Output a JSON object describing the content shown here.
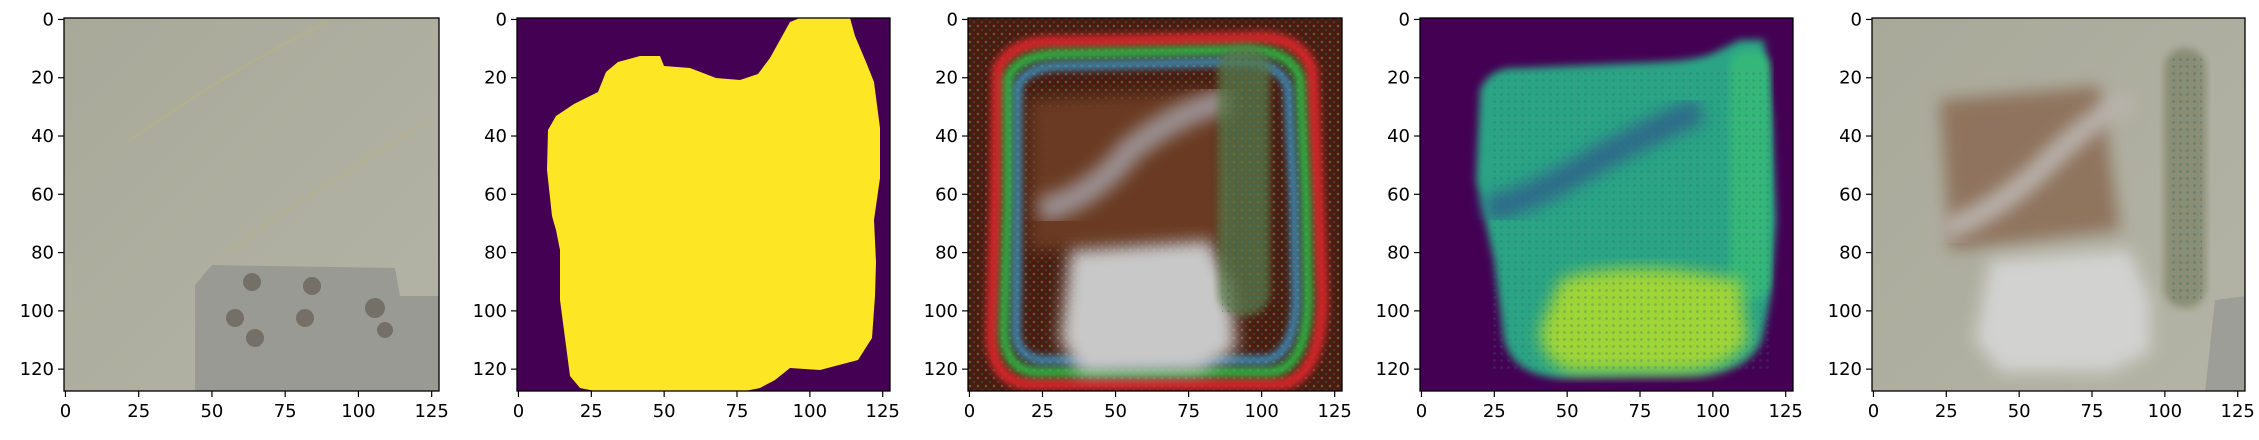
{
  "figure": {
    "panel_count": 5,
    "axis": {
      "x_ticks": [
        "0",
        "25",
        "50",
        "75",
        "100",
        "125"
      ],
      "y_ticks": [
        "0",
        "20",
        "40",
        "60",
        "80",
        "100",
        "120"
      ],
      "x_tick_values": [
        0,
        25,
        50,
        75,
        100,
        125
      ],
      "y_tick_values": [
        0,
        20,
        40,
        60,
        80,
        100,
        120
      ],
      "extent": [
        128,
        128
      ]
    },
    "panels": [
      {
        "name": "input-image",
        "kind": "rgb-photo"
      },
      {
        "name": "mask",
        "kind": "binary-mask",
        "colors": {
          "background": "#440154",
          "foreground": "#fde725"
        }
      },
      {
        "name": "generated-image",
        "kind": "rgb-artifacts"
      },
      {
        "name": "generated-channel",
        "kind": "viridis-heatmap",
        "colors": {
          "background": "#440154"
        }
      },
      {
        "name": "blended-image",
        "kind": "rgb-photo"
      }
    ]
  }
}
